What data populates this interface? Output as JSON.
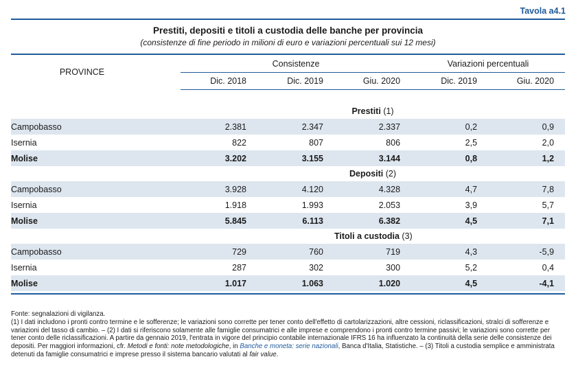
{
  "header": {
    "tavola": "Tavola a4.1",
    "title": "Prestiti, depositi e titoli a custodia delle banche per provincia",
    "subtitle": "(consistenze di fine periodo in milioni di euro e variazioni percentuali sui 12 mesi)"
  },
  "table": {
    "row_header": "PROVINCE",
    "group_consistenze": "Consistenze",
    "group_variazioni": "Variazioni percentuali",
    "columns": [
      "Dic. 2018",
      "Dic. 2019",
      "Giu. 2020",
      "Dic. 2019",
      "Giu. 2020"
    ],
    "sections": [
      {
        "label": "Prestiti",
        "note": "(1)",
        "rows": [
          {
            "name": "Campobasso",
            "values": [
              "2.381",
              "2.347",
              "2.337",
              "0,2",
              "0,9"
            ]
          },
          {
            "name": "Isernia",
            "values": [
              "822",
              "807",
              "806",
              "2,5",
              "2,0"
            ]
          },
          {
            "name": "Molise",
            "values": [
              "3.202",
              "3.155",
              "3.144",
              "0,8",
              "1,2"
            ]
          }
        ]
      },
      {
        "label": "Depositi",
        "note": "(2)",
        "rows": [
          {
            "name": "Campobasso",
            "values": [
              "3.928",
              "4.120",
              "4.328",
              "4,7",
              "7,8"
            ]
          },
          {
            "name": "Isernia",
            "values": [
              "1.918",
              "1.993",
              "2.053",
              "3,9",
              "5,7"
            ]
          },
          {
            "name": "Molise",
            "values": [
              "5.845",
              "6.113",
              "6.382",
              "4,5",
              "7,1"
            ]
          }
        ]
      },
      {
        "label": "Titoli a custodia",
        "note": "(3)",
        "rows": [
          {
            "name": "Campobasso",
            "values": [
              "729",
              "760",
              "719",
              "4,3",
              "-5,9"
            ]
          },
          {
            "name": "Isernia",
            "values": [
              "287",
              "302",
              "300",
              "5,2",
              "0,4"
            ]
          },
          {
            "name": "Molise",
            "values": [
              "1.017",
              "1.063",
              "1.020",
              "4,5",
              "-4,1"
            ]
          }
        ]
      }
    ]
  },
  "notes": {
    "fonte": "Fonte: segnalazioni di vigilanza.",
    "n1": "(1) I dati includono i pronti contro termine e le sofferenze; le variazioni sono corrette per tener conto dell'effetto di cartolarizzazioni, altre cessioni, riclassificazioni, stralci di sofferenze e variazioni del tasso di cambio. – (2) I dati si riferiscono solamente alle famiglie consumatrici e alle imprese e comprendono i pronti contro termine passivi; le variazioni sono corrette per tener conto delle riclassificazioni. A partire da gennaio 2019, l'entrata in vigore del principio contabile internazionale IFRS 16 ha influenzato la continuità della serie delle consistenze dei depositi. Per maggiori informazioni, cfr.",
    "metodi": "Metodi e fonti: note metodologiche",
    "in": ", in",
    "link": "Banche e moneta: serie nazionali",
    "n2": ", Banca d'Italia, Statistiche. – (3) Titoli a custodia semplice e amministrata detenuti da famiglie consumatrici e imprese presso il sistema bancario valutati al",
    "fair": "fair value",
    "end": "."
  }
}
